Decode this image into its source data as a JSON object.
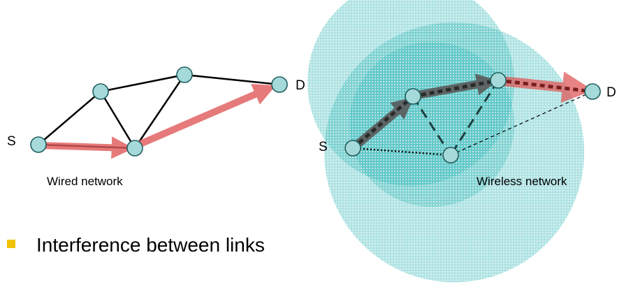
{
  "wired": {
    "source_label": "S",
    "dest_label": "D",
    "caption": "Wired network"
  },
  "wireless": {
    "source_label": "S",
    "dest_label": "D",
    "caption": "Wireless network"
  },
  "bullets": [
    {
      "text": "Interference between links"
    }
  ],
  "colors": {
    "node_fill": "#a6d9d9",
    "node_stroke": "#1f5f5f",
    "path_red": "#e05a5a",
    "path_gray": "#5a5a5a",
    "range_fill": "#2fb5b5",
    "bullet": "#f2c300",
    "link": "#000000"
  }
}
